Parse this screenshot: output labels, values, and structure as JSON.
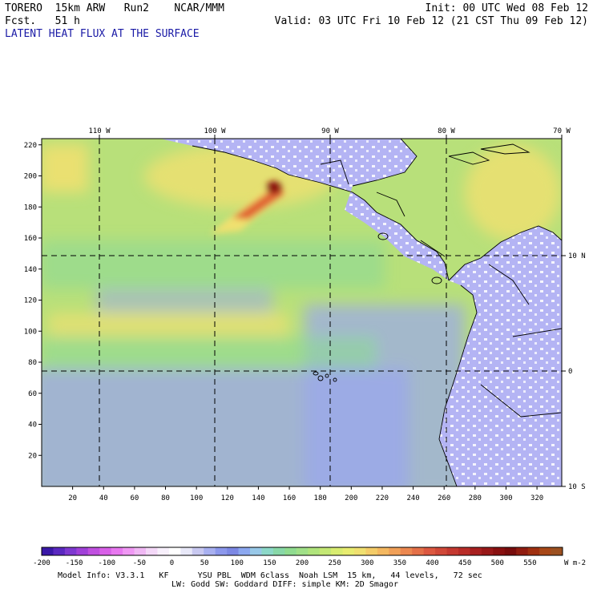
{
  "header": {
    "left_line1": "TORERO  15km ARW   Run2    NCAR/MMM",
    "left_line2": "Fcst.   51 h",
    "field_title": "LATENT HEAT FLUX AT THE SURFACE",
    "right_line1": "Init: 00 UTC Wed 08 Feb 12",
    "right_line2": "Valid: 03 UTC Fri 10 Feb 12 (21 CST Thu 09 Feb 12)"
  },
  "map": {
    "top_lon_labels": [
      "110 W",
      "100 W",
      "90 W",
      "80 W",
      "70 W"
    ],
    "right_lat_labels": [
      "10 N",
      "0",
      "10 S"
    ],
    "left_y_ticks": [
      "20",
      "40",
      "60",
      "80",
      "100",
      "120",
      "140",
      "160",
      "180",
      "200",
      "220"
    ],
    "bottom_x_ticks": [
      "20",
      "40",
      "60",
      "80",
      "100",
      "120",
      "140",
      "160",
      "180",
      "200",
      "220",
      "240",
      "260",
      "280",
      "300",
      "320"
    ],
    "colors": {
      "ocean_base": "#b8e07a",
      "low_flux": "#9aa6ee",
      "mid_flux": "#8cd896",
      "high_flux": "#f0e070",
      "peak_flux": "#e06030",
      "extreme_flux": "#8a1010",
      "land": "#b4b4f4",
      "land_speckle": "#ffffff"
    }
  },
  "colorbar": {
    "labels": [
      "-200",
      "-150",
      "-100",
      "-50",
      "0",
      "50",
      "100",
      "150",
      "200",
      "250",
      "300",
      "350",
      "400",
      "450",
      "500",
      "550"
    ],
    "units": "W m-2",
    "colors": [
      "#3a18a8",
      "#5a28c0",
      "#7e38d0",
      "#a040d8",
      "#c050e0",
      "#d860e8",
      "#e878f0",
      "#f098f4",
      "#f0b8f4",
      "#f4d8f8",
      "#f8f0fc",
      "#ffffff",
      "#e8e8f8",
      "#c8c8f0",
      "#a8b0f0",
      "#8c98ec",
      "#7c88e4",
      "#8ca8f0",
      "#98c8e8",
      "#8cd8c8",
      "#88d8a8",
      "#90dc90",
      "#a0e088",
      "#b0e47c",
      "#c4e874",
      "#d8ec70",
      "#e8ec70",
      "#f0e070",
      "#f4cc68",
      "#f4b860",
      "#f0a058",
      "#ec8850",
      "#e47048",
      "#dc5840",
      "#d04838",
      "#c43830",
      "#b82c28",
      "#a82020",
      "#981818",
      "#881010",
      "#780c0c",
      "#901c10",
      "#a03010",
      "#a84818",
      "#9c5020"
    ]
  },
  "footer": {
    "line1": "Model Info: V3.3.1   KF      YSU PBL  WDM 6class  Noah LSM  15 km,   44 levels,   72 sec",
    "line2": "LW: Godd SW: Goddard DIFF: simple KM: 2D Smagor"
  }
}
